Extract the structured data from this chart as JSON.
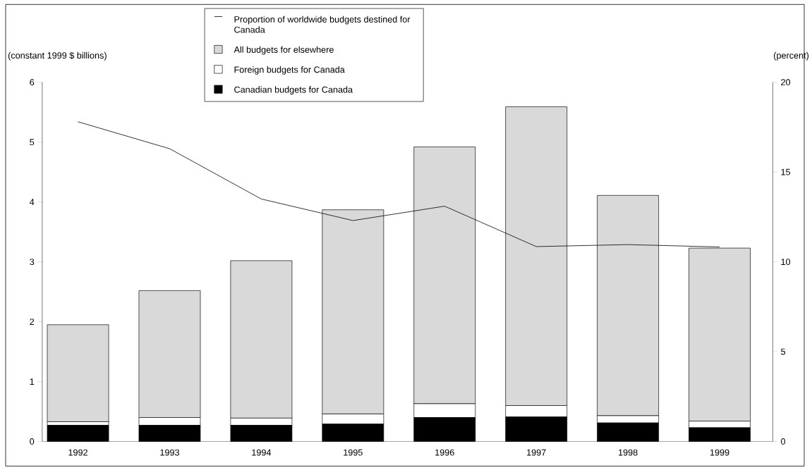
{
  "chart_data": {
    "type": "bar",
    "stacked": true,
    "ylabel": "(constant 1999 $ billions)",
    "y2label": "(percent)",
    "categories": [
      "1992",
      "1993",
      "1994",
      "1995",
      "1996",
      "1997",
      "1998",
      "1999"
    ],
    "ylim": [
      0,
      6
    ],
    "yticks": [
      0,
      1,
      2,
      3,
      4,
      5,
      6
    ],
    "y2lim": [
      0,
      20
    ],
    "y2ticks": [
      0,
      5,
      10,
      15,
      20
    ],
    "legend": "top",
    "series": [
      {
        "name": "Canadian budgets for Canada",
        "color": "#000000",
        "values": [
          0.27,
          0.27,
          0.27,
          0.29,
          0.4,
          0.41,
          0.31,
          0.23
        ]
      },
      {
        "name": "Foreign budgets for Canada",
        "color": "#ffffff",
        "values": [
          0.06,
          0.13,
          0.12,
          0.17,
          0.23,
          0.19,
          0.12,
          0.11
        ]
      },
      {
        "name": "All budgets for elsewhere",
        "color": "#d9d9d9",
        "values": [
          1.62,
          2.12,
          2.63,
          3.41,
          4.29,
          4.99,
          3.68,
          2.89
        ]
      },
      {
        "name": "Proportion of worldwide budgets destined for Canada",
        "type": "line",
        "axis": "y2",
        "color": "#000000",
        "values": [
          17.8,
          16.3,
          13.5,
          12.3,
          13.1,
          10.85,
          10.96,
          10.83
        ]
      }
    ]
  }
}
